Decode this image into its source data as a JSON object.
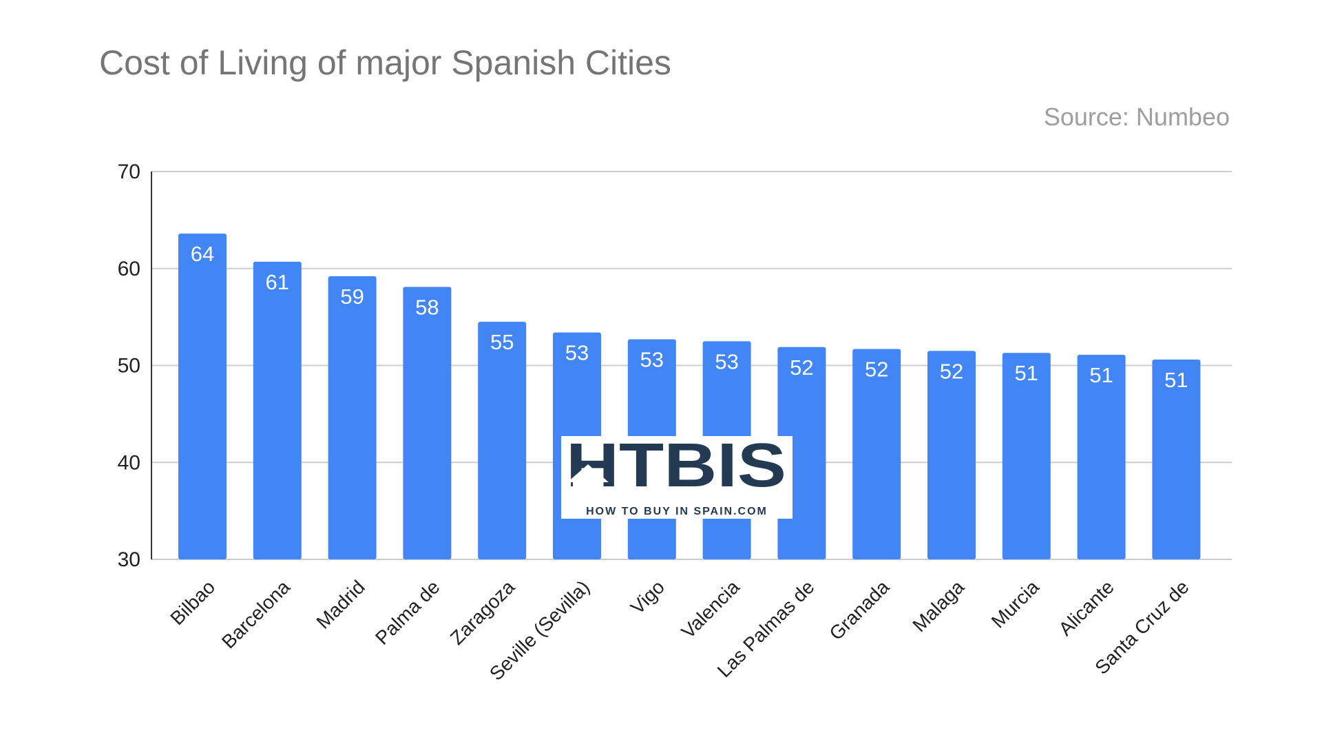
{
  "chart_data": {
    "type": "bar",
    "title": "Cost of Living of major Spanish Cities",
    "subtitle": "Source: Numbeo",
    "xlabel": "",
    "ylabel": "",
    "ylim": [
      30,
      70
    ],
    "yticks": [
      30,
      40,
      50,
      60,
      70
    ],
    "grid": true,
    "bar_color": "#4285f4",
    "categories": [
      "Bilbao",
      "Barcelona",
      "Madrid",
      "Palma de",
      "Zaragoza",
      "Seville (Sevilla)",
      "Vigo",
      "Valencia",
      "Las Palmas de",
      "Granada",
      "Malaga",
      "Murcia",
      "Alicante",
      "Santa Cruz de"
    ],
    "values": [
      63.6,
      60.7,
      59.2,
      58.1,
      54.5,
      53.4,
      52.7,
      52.5,
      51.9,
      51.7,
      51.5,
      51.3,
      51.1,
      50.6
    ],
    "data_labels": [
      "64",
      "61",
      "59",
      "58",
      "55",
      "53",
      "53",
      "53",
      "52",
      "52",
      "52",
      "51",
      "51",
      "51"
    ]
  },
  "watermark": {
    "logo_text": "HTBIS",
    "tagline": "HOW TO BUY IN SPAIN.COM",
    "color": "#243a52"
  }
}
